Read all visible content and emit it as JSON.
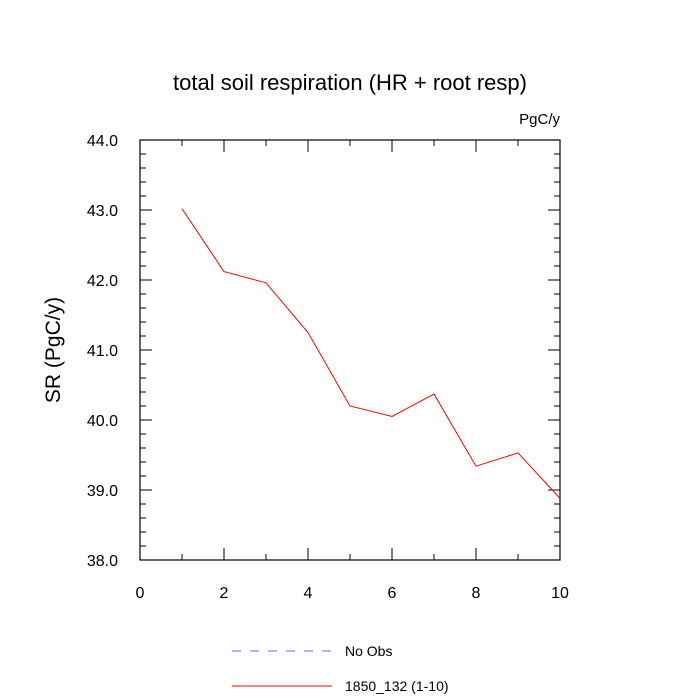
{
  "chart_data": {
    "type": "line",
    "title": "total soil respiration (HR + root resp)",
    "units_label": "PgC/y",
    "xlabel": "",
    "ylabel": "SR  (PgC/y)",
    "xlim": [
      0,
      10
    ],
    "ylim": [
      38.0,
      44.0
    ],
    "x_ticks": [
      "0",
      "2",
      "4",
      "6",
      "8",
      "10"
    ],
    "y_ticks": [
      "38.0",
      "39.0",
      "40.0",
      "41.0",
      "42.0",
      "43.0",
      "44.0"
    ],
    "grid": false,
    "legend_position": "bottom",
    "series": [
      {
        "name": "No Obs",
        "color": "#6666ff",
        "dash": "dashed",
        "x": [],
        "values": []
      },
      {
        "name": "1850_132 (1-10)",
        "color": "#ff0000",
        "dash": "solid",
        "x": [
          1,
          2,
          3,
          4,
          5,
          6,
          7,
          8,
          9,
          10
        ],
        "values": [
          43.02,
          42.12,
          41.96,
          41.25,
          40.2,
          40.05,
          40.37,
          39.34,
          39.53,
          38.88
        ]
      }
    ]
  }
}
